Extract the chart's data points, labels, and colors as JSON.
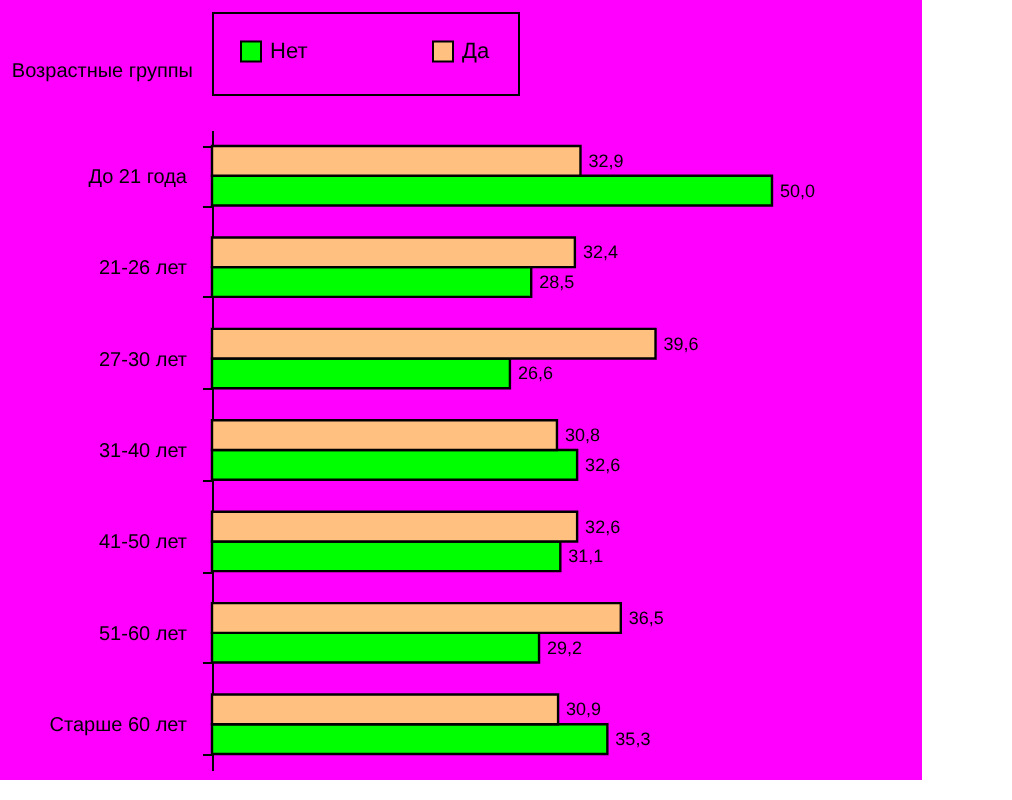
{
  "chart_data": {
    "type": "bar",
    "orientation": "horizontal",
    "ylabel": "Возрастные группы",
    "categories": [
      "До 21 года",
      "21-26 лет",
      "27-30 лет",
      "31-40 лет",
      "41-50 лет",
      "51-60 лет",
      "Старше 60 лет"
    ],
    "series": [
      {
        "name": "Нет",
        "color": "#00ff00",
        "values": [
          50.0,
          28.5,
          26.6,
          32.6,
          31.1,
          29.2,
          35.3
        ],
        "value_labels": [
          "50,0",
          "28,5",
          "26,6",
          "32,6",
          "31,1",
          "29,2",
          "35,3"
        ]
      },
      {
        "name": "Да",
        "color": "#ffc080",
        "values": [
          32.9,
          32.4,
          39.6,
          30.8,
          32.6,
          36.5,
          30.9
        ],
        "value_labels": [
          "32,9",
          "32,4",
          "39,6",
          "30,8",
          "32,6",
          "36,5",
          "30,9"
        ]
      }
    ],
    "legend": "top",
    "grid": false
  }
}
